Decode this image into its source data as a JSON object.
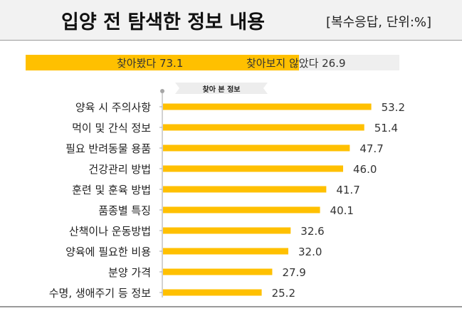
{
  "header": {
    "title": "입양 전 탐색한 정보 내용",
    "unit": "[복수응답, 단위:%]"
  },
  "split_bar": {
    "yes_label": "찾아봤다 73.1",
    "yes_value": 73.1,
    "no_label": "찾아보지 않았다 26.9",
    "no_value": 26.9,
    "colors": {
      "yes": "#ffc000",
      "no": "#efefef"
    }
  },
  "subheading": "찾아 본 정보",
  "chart_data": {
    "type": "bar",
    "orientation": "horizontal",
    "categories": [
      "양육 시 주의사항",
      "먹이 및 간식 정보",
      "필요 반려동물 용품",
      "건강관리 방법",
      "훈련 및 훈육 방법",
      "품종별 특징",
      "산책이나 운동방법",
      "양육에 필요한 비용",
      "분양 가격",
      "수명, 생애주기 등 정보"
    ],
    "values": [
      53.2,
      51.4,
      47.7,
      46.0,
      41.7,
      40.1,
      32.6,
      32.0,
      27.9,
      25.2
    ],
    "value_labels": [
      "53.2",
      "51.4",
      "47.7",
      "46.0",
      "41.7",
      "40.1",
      "32.6",
      "32.0",
      "27.9",
      "25.2"
    ],
    "xlim": [
      0,
      100
    ],
    "bar_color": "#ffc000",
    "grid": false,
    "legend": "none"
  }
}
